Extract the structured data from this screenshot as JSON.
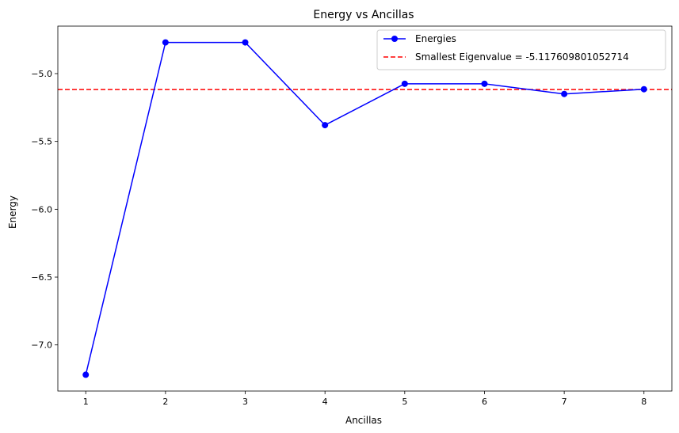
{
  "chart_data": {
    "type": "line",
    "title": "Energy vs Ancillas",
    "xlabel": "Ancillas",
    "ylabel": "Energy",
    "x": [
      1,
      2,
      3,
      4,
      5,
      6,
      7,
      8
    ],
    "series": [
      {
        "name": "Energies",
        "values": [
          -7.22,
          -4.77,
          -4.77,
          -5.38,
          -5.075,
          -5.075,
          -5.15,
          -5.115
        ],
        "color": "#0000ff",
        "marker": "circle"
      }
    ],
    "reference_lines": [
      {
        "name": "Smallest Eigenvalue = -5.117609801052714",
        "y": -5.117609801052714,
        "color": "#ff0000",
        "style": "dashed"
      }
    ],
    "xlim": [
      0.65,
      8.35
    ],
    "ylim": [
      -7.34,
      -4.65
    ],
    "xticks": [
      "1",
      "2",
      "3",
      "4",
      "5",
      "6",
      "7",
      "8"
    ],
    "yticks": [
      "−5.0",
      "−5.5",
      "−6.0",
      "−6.5",
      "−7.0"
    ],
    "ytick_values": [
      -5.0,
      -5.5,
      -6.0,
      -6.5,
      -7.0
    ],
    "grid": false,
    "legend_position": "top-right"
  }
}
